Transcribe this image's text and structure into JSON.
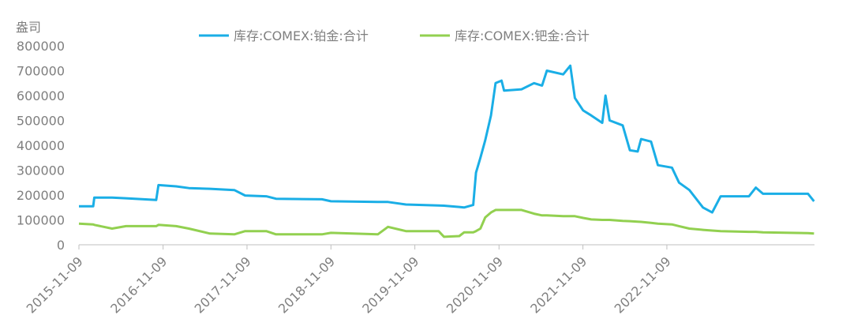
{
  "chart_data": {
    "type": "line",
    "y_label": "盎司",
    "x": [
      "2015-11-09",
      "2016-01-10",
      "2016-01-15",
      "2016-04-01",
      "2016-06-01",
      "2016-10-10",
      "2016-10-20",
      "2017-01-05",
      "2017-03-01",
      "2017-06-01",
      "2017-09-15",
      "2017-11-01",
      "2018-02-01",
      "2018-03-15",
      "2018-10-01",
      "2018-11-09",
      "2019-06-01",
      "2019-07-15",
      "2019-10-01",
      "2020-02-20",
      "2020-03-15",
      "2020-05-20",
      "2020-06-10",
      "2020-07-20",
      "2020-08-01",
      "2020-08-20",
      "2020-09-10",
      "2020-10-05",
      "2020-10-25",
      "2020-11-20",
      "2020-12-01",
      "2021-02-15",
      "2021-04-10",
      "2021-05-15",
      "2021-06-05",
      "2021-08-15",
      "2021-09-15",
      "2021-10-05",
      "2021-11-10",
      "2021-12-15",
      "2022-02-01",
      "2022-02-15",
      "2022-03-05",
      "2022-05-01",
      "2022-06-01",
      "2022-07-05",
      "2022-07-20",
      "2022-09-01",
      "2022-10-01",
      "2022-12-01",
      "2023-01-01",
      "2023-02-15",
      "2023-04-15",
      "2023-05-25",
      "2023-07-01",
      "2023-11-01",
      "2023-12-01",
      "2024-01-01",
      "2024-07-15",
      "2024-08-10"
    ],
    "series": [
      {
        "name": "库存:COMEX:铂金:合计",
        "color": "#1aaee6",
        "values": [
          155000,
          155000,
          190000,
          190000,
          187000,
          180000,
          240000,
          235000,
          228000,
          225000,
          220000,
          198000,
          195000,
          185000,
          183000,
          175000,
          172000,
          172000,
          162000,
          158000,
          157000,
          152000,
          150000,
          160000,
          290000,
          350000,
          420000,
          520000,
          650000,
          660000,
          620000,
          625000,
          650000,
          640000,
          700000,
          685000,
          720000,
          590000,
          540000,
          520000,
          490000,
          600000,
          500000,
          480000,
          380000,
          375000,
          425000,
          415000,
          320000,
          310000,
          250000,
          220000,
          150000,
          130000,
          195000,
          195000,
          230000,
          205000,
          205000,
          175000
        ]
      },
      {
        "name": "库存:COMEX:钯金:合计",
        "color": "#92d050",
        "values": [
          85000,
          82000,
          80000,
          65000,
          75000,
          75000,
          80000,
          75000,
          65000,
          45000,
          42000,
          55000,
          55000,
          42000,
          42000,
          48000,
          42000,
          72000,
          55000,
          55000,
          32000,
          35000,
          50000,
          50000,
          55000,
          65000,
          110000,
          130000,
          140000,
          140000,
          140000,
          140000,
          125000,
          118000,
          118000,
          115000,
          115000,
          115000,
          108000,
          102000,
          100000,
          100000,
          100000,
          96000,
          95000,
          93000,
          92000,
          88000,
          85000,
          82000,
          75000,
          65000,
          60000,
          57000,
          55000,
          52000,
          52000,
          50000,
          47000,
          45000
        ]
      }
    ],
    "xlim": [
      "2015-11-09",
      "2024-08-12"
    ],
    "xticks": [
      "2015-11-09",
      "2016-11-09",
      "2017-11-09",
      "2018-11-09",
      "2019-11-09",
      "2020-11-09",
      "2021-11-09",
      "2022-11-09"
    ],
    "ylim": [
      0,
      800000
    ],
    "yticks": [
      0,
      100000,
      200000,
      300000,
      400000,
      500000,
      600000,
      700000,
      800000
    ],
    "grid": false
  }
}
